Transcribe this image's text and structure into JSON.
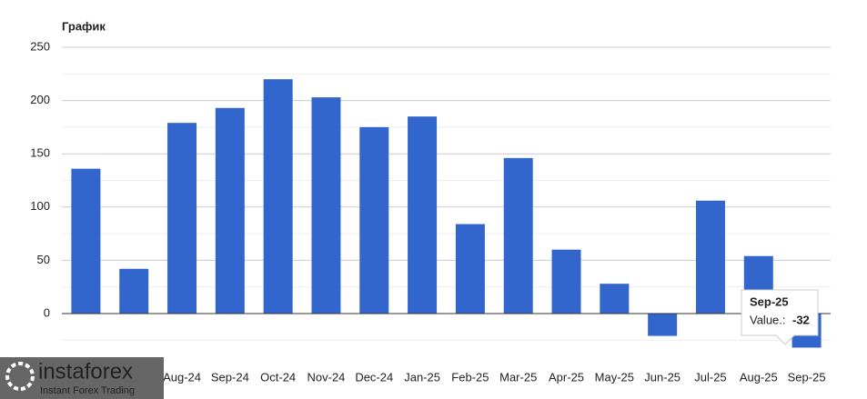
{
  "chart_data": {
    "type": "bar",
    "title": "График",
    "categories": [
      null,
      null,
      "Aug-24",
      "Sep-24",
      "Oct-24",
      "Nov-24",
      "Dec-24",
      "Jan-25",
      "Feb-25",
      "Mar-25",
      "Apr-25",
      "May-25",
      "Jun-25",
      "Jul-25",
      "Aug-25",
      "Sep-25"
    ],
    "values": [
      136,
      42,
      179,
      193,
      220,
      203,
      175,
      185,
      84,
      146,
      60,
      28,
      -21,
      106,
      54,
      -32
    ],
    "color": "#3366cc",
    "ylim": [
      -35,
      250
    ],
    "yticks": [
      0,
      50,
      100,
      150,
      200,
      250
    ],
    "minor_yticks": [
      -25,
      25,
      75,
      125,
      175,
      225
    ],
    "grid": true,
    "tooltip": {
      "label": "Value.:"
    }
  },
  "watermark": {
    "brand": "instaforex",
    "tagline": "Instant Forex Trading"
  }
}
